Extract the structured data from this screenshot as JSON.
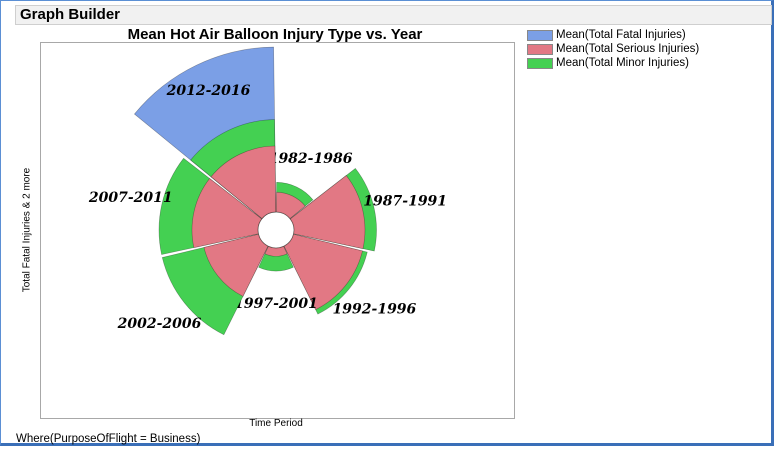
{
  "window_title": "Graph Builder",
  "chart_data": {
    "type": "polar-bar",
    "title": "Mean Hot Air Balloon Injury Type vs. Year",
    "xlabel": "Time Period",
    "ylabel": "Total Fatal Injuries & 2 more",
    "where": "Where(PurposeOfFlight = Business)",
    "series": [
      {
        "name": "Mean(Total Fatal Injuries)",
        "color": "#7b9fe6"
      },
      {
        "name": "Mean(Total Serious Injuries)",
        "color": "#e27884"
      },
      {
        "name": "Mean(Total Minor Injuries)",
        "color": "#44d052"
      }
    ],
    "categories": [
      "1982-1986",
      "1987-1991",
      "1992-1996",
      "1997-2001",
      "2002-2006",
      "2007-2011",
      "2012-2016"
    ],
    "values": [
      {
        "fatal": 0.0,
        "serious": 0.6,
        "minor": 0.9
      },
      {
        "fatal": 0.0,
        "serious": 2.15,
        "minor": 2.5
      },
      {
        "fatal": 0.0,
        "serious": 2.15,
        "minor": 2.3
      },
      {
        "fatal": 0.0,
        "serious": 0.25,
        "minor": 0.7
      },
      {
        "fatal": 0.0,
        "serious": 1.7,
        "minor": 3.0
      },
      {
        "fatal": 0.0,
        "serious": 2.0,
        "minor": 3.0
      },
      {
        "fatal": 5.0,
        "serious": 2.0,
        "minor": 2.8
      }
    ],
    "stacking": "nested-radial",
    "legend_position": "right"
  }
}
